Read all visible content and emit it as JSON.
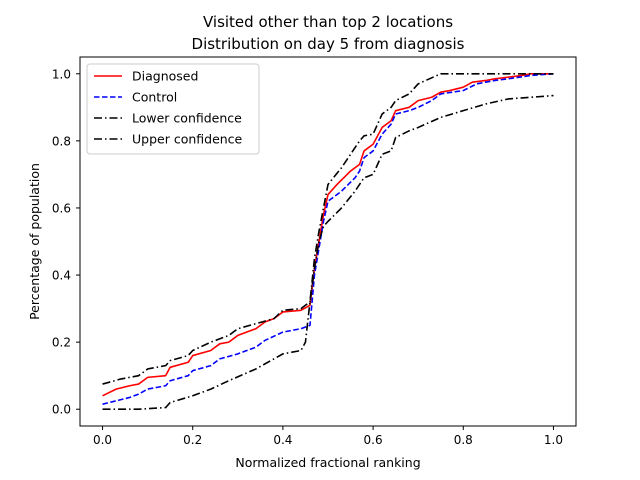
{
  "chart_data": {
    "type": "line",
    "title": "Visited other than top 2 locations",
    "subtitle": "Distribution on day 5 from diagnosis",
    "xlabel": "Normalized fractional ranking",
    "ylabel": "Percentage of population",
    "xlim": [
      -0.05,
      1.05
    ],
    "ylim": [
      -0.05,
      1.05
    ],
    "xticks": [
      "0.0",
      "0.2",
      "0.4",
      "0.6",
      "0.8",
      "1.0"
    ],
    "yticks": [
      "0.0",
      "0.2",
      "0.4",
      "0.6",
      "0.8",
      "1.0"
    ],
    "grid": false,
    "legend_position": "top-left",
    "series": [
      {
        "name": "Diagnosed",
        "color": "#ff0000",
        "dash": "solid",
        "x": [
          0.0,
          0.03,
          0.06,
          0.08,
          0.1,
          0.14,
          0.15,
          0.19,
          0.2,
          0.24,
          0.26,
          0.28,
          0.3,
          0.34,
          0.36,
          0.38,
          0.4,
          0.44,
          0.46,
          0.47,
          0.48,
          0.49,
          0.5,
          0.52,
          0.55,
          0.57,
          0.58,
          0.59,
          0.6,
          0.62,
          0.64,
          0.65,
          0.68,
          0.7,
          0.73,
          0.75,
          0.77,
          0.8,
          0.82,
          0.85,
          0.87,
          0.9,
          0.93,
          0.95,
          1.0
        ],
        "y": [
          0.04,
          0.06,
          0.07,
          0.075,
          0.095,
          0.1,
          0.125,
          0.14,
          0.16,
          0.175,
          0.195,
          0.2,
          0.22,
          0.24,
          0.26,
          0.27,
          0.29,
          0.295,
          0.31,
          0.42,
          0.5,
          0.58,
          0.64,
          0.67,
          0.71,
          0.73,
          0.77,
          0.78,
          0.79,
          0.84,
          0.86,
          0.89,
          0.9,
          0.92,
          0.93,
          0.945,
          0.95,
          0.96,
          0.975,
          0.98,
          0.985,
          0.99,
          0.995,
          1.0,
          1.0
        ]
      },
      {
        "name": "Control",
        "color": "#0000ff",
        "dash": "dashed",
        "x": [
          0.0,
          0.03,
          0.06,
          0.08,
          0.1,
          0.14,
          0.15,
          0.19,
          0.2,
          0.24,
          0.26,
          0.3,
          0.34,
          0.36,
          0.4,
          0.44,
          0.46,
          0.47,
          0.48,
          0.49,
          0.5,
          0.53,
          0.56,
          0.57,
          0.58,
          0.59,
          0.6,
          0.62,
          0.64,
          0.65,
          0.68,
          0.7,
          0.73,
          0.75,
          0.8,
          0.83,
          0.87,
          0.9,
          0.95,
          1.0
        ],
        "y": [
          0.015,
          0.025,
          0.035,
          0.045,
          0.06,
          0.07,
          0.085,
          0.1,
          0.115,
          0.13,
          0.15,
          0.165,
          0.185,
          0.205,
          0.23,
          0.24,
          0.25,
          0.4,
          0.48,
          0.56,
          0.62,
          0.65,
          0.69,
          0.71,
          0.75,
          0.76,
          0.77,
          0.82,
          0.85,
          0.88,
          0.89,
          0.9,
          0.92,
          0.94,
          0.95,
          0.97,
          0.98,
          0.985,
          0.995,
          1.0
        ]
      },
      {
        "name": "Lower confidence",
        "color": "#000000",
        "dash": "dashdot",
        "x": [
          0.0,
          0.08,
          0.14,
          0.15,
          0.2,
          0.24,
          0.28,
          0.34,
          0.4,
          0.44,
          0.45,
          0.46,
          0.47,
          0.48,
          0.49,
          0.5,
          0.53,
          0.56,
          0.58,
          0.6,
          0.62,
          0.64,
          0.65,
          0.68,
          0.7,
          0.75,
          0.8,
          0.85,
          0.9,
          0.95,
          1.0
        ],
        "y": [
          0.0,
          0.0,
          0.005,
          0.02,
          0.04,
          0.06,
          0.085,
          0.12,
          0.165,
          0.175,
          0.2,
          0.32,
          0.42,
          0.5,
          0.545,
          0.56,
          0.6,
          0.65,
          0.69,
          0.7,
          0.76,
          0.77,
          0.81,
          0.83,
          0.84,
          0.87,
          0.89,
          0.91,
          0.925,
          0.93,
          0.935
        ]
      },
      {
        "name": "Upper confidence",
        "color": "#000000",
        "dash": "dashdot",
        "x": [
          0.0,
          0.04,
          0.08,
          0.1,
          0.14,
          0.15,
          0.19,
          0.2,
          0.24,
          0.28,
          0.3,
          0.34,
          0.38,
          0.4,
          0.44,
          0.46,
          0.47,
          0.48,
          0.49,
          0.5,
          0.53,
          0.55,
          0.57,
          0.58,
          0.6,
          0.62,
          0.64,
          0.65,
          0.68,
          0.7,
          0.75,
          0.8,
          0.85,
          1.0
        ],
        "y": [
          0.075,
          0.09,
          0.1,
          0.12,
          0.13,
          0.145,
          0.16,
          0.175,
          0.2,
          0.22,
          0.24,
          0.255,
          0.27,
          0.295,
          0.3,
          0.32,
          0.45,
          0.53,
          0.6,
          0.67,
          0.72,
          0.76,
          0.8,
          0.815,
          0.82,
          0.88,
          0.9,
          0.92,
          0.94,
          0.97,
          1.0,
          1.0,
          1.0,
          1.0
        ]
      }
    ]
  }
}
